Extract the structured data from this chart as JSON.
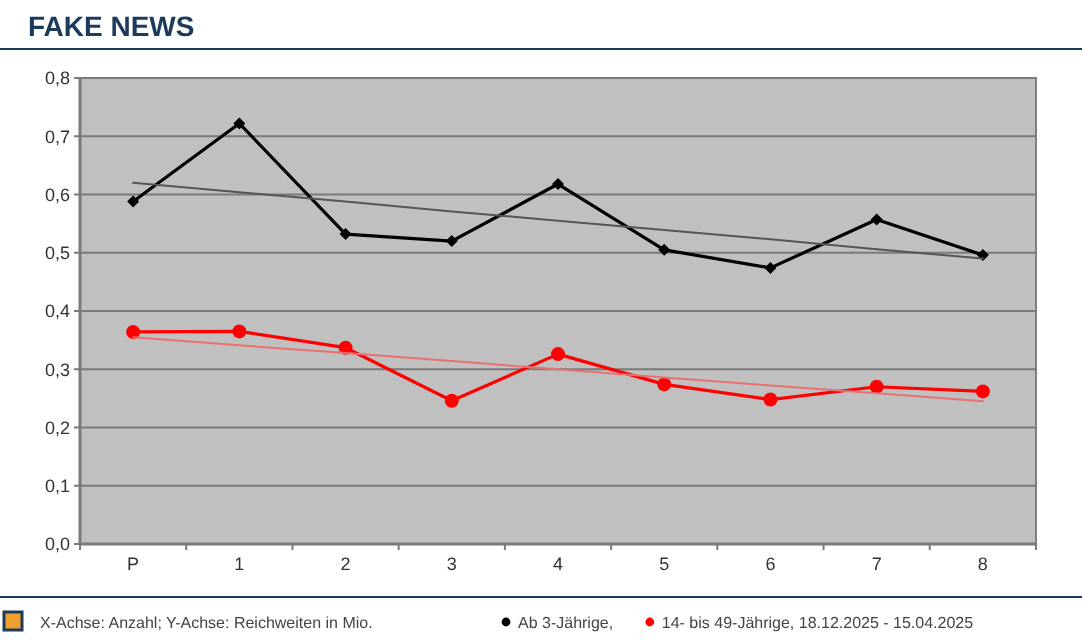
{
  "chart_data": {
    "type": "line",
    "title": "FAKE NEWS",
    "annotations": [
      "X-Achse: Anzahl; Y-Achse: Reichweiten in Mio."
    ],
    "categories": [
      "P",
      "1",
      "2",
      "3",
      "4",
      "5",
      "6",
      "7",
      "8"
    ],
    "ylim": [
      0,
      0.8
    ],
    "yticks": [
      {
        "value": 0,
        "label": "0,0"
      },
      {
        "value": 0.1,
        "label": "0,1"
      },
      {
        "value": 0.2,
        "label": "0,2"
      },
      {
        "value": 0.3,
        "label": "0,3"
      },
      {
        "value": 0.4,
        "label": "0,4"
      },
      {
        "value": 0.5,
        "label": "0,5"
      },
      {
        "value": 0.6,
        "label": "0,6"
      },
      {
        "value": 0.7,
        "label": "0,7"
      },
      {
        "value": 0.8,
        "label": "0,8"
      }
    ],
    "grid": "y",
    "legend": "bottom",
    "line_style": "solid",
    "series": [
      {
        "name": "Ab 3-Jährige,",
        "color": "#000000",
        "marker": "diamond",
        "values": [
          0.588,
          0.722,
          0.532,
          0.52,
          0.618,
          0.505,
          0.474,
          0.557,
          0.496
        ]
      },
      {
        "name": "14- bis 49-Jährige, 18.12.2025 - 15.04.2025",
        "color": "#ff0000",
        "marker": "circle",
        "values": [
          0.364,
          0.365,
          0.337,
          0.246,
          0.326,
          0.274,
          0.248,
          0.27,
          0.262
        ]
      },
      {
        "color": "#555555",
        "marker": "none",
        "values": [
          0.62,
          0.604,
          0.588,
          0.571,
          0.555,
          0.539,
          0.523,
          0.506,
          0.49
        ]
      },
      {
        "color": "#e87070",
        "marker": "none",
        "values": [
          0.355,
          0.341,
          0.328,
          0.314,
          0.3,
          0.286,
          0.272,
          0.259,
          0.245
        ]
      }
    ]
  }
}
